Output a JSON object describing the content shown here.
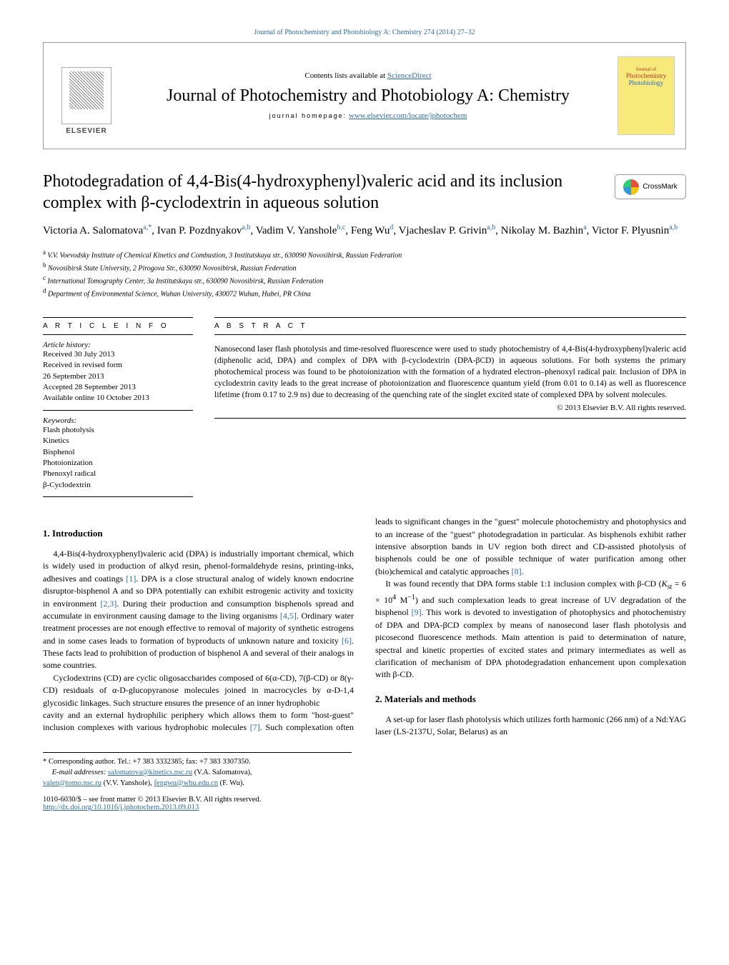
{
  "topLink": "Journal of Photochemistry and Photobiology A: Chemistry 274 (2014) 27–32",
  "header": {
    "contentsPrefix": "Contents lists available at",
    "contentsLink": "ScienceDirect",
    "journalTitle": "Journal of Photochemistry and Photobiology A: Chemistry",
    "homepageLabel": "journal homepage:",
    "homepageUrl": "www.elsevier.com/locate/jphotochem",
    "publisherName": "ELSEVIER",
    "coverLine1": "Journal of",
    "coverLine2": "Photochemistry",
    "coverLine3": "Photobiology"
  },
  "article": {
    "title": "Photodegradation of 4,4-Bis(4-hydroxyphenyl)valeric acid and its inclusion complex with β-cyclodextrin in aqueous solution",
    "crossmarkLabel": "CrossMark"
  },
  "authors": "Victoria A. Salomatova<sup>a,*</sup>, Ivan P. Pozdnyakov<sup>a,b</sup>, Vadim V. Yanshole<sup>b,c</sup>, Feng Wu<sup>d</sup>, Vjacheslav P. Grivin<sup>a,b</sup>, Nikolay M. Bazhin<sup>a</sup>, Victor F. Plyusnin<sup>a,b</sup>",
  "affiliations": [
    "V.V. Voevodsky Institute of Chemical Kinetics and Combustion, 3 Institutskaya str., 630090 Novosibirsk, Russian Federation",
    "Novosibirsk State University, 2 Pirogova Str., 630090 Novosibirsk, Russian Federation",
    "International Tomography Center, 3a Institutskaya str., 630090 Novosibirsk, Russian Federation",
    "Department of Environmental Science, Wuhan University, 430072 Wuhan, Hubei, PR China"
  ],
  "affLabels": [
    "a",
    "b",
    "c",
    "d"
  ],
  "info": {
    "heading": "A R T I C L E    I N F O",
    "historyLabel": "Article history:",
    "history": "Received 30 July 2013\nReceived in revised form\n26 September 2013\nAccepted 28 September 2013\nAvailable online 10 October 2013",
    "keywordsLabel": "Keywords:",
    "keywords": "Flash photolysis\nKinetics\nBisphenol\nPhotoionization\nPhenoxyl radical\nβ-Cyclodextrin"
  },
  "abstract": {
    "heading": "A B S T R A C T",
    "text": "Nanosecond laser flash photolysis and time-resolved fluorescence were used to study photochemistry of 4,4-Bis(4-hydroxyphenyl)valeric acid (diphenolic acid, DPA) and complex of DPA with β-cyclodextrin (DPA-βCD) in aqueous solutions. For both systems the primary photochemical process was found to be photoionization with the formation of a hydrated electron–phenoxyl radical pair. Inclusion of DPA in cyclodextrin cavity leads to the great increase of photoionization and fluorescence quantum yield (from 0.01 to 0.14) as well as fluorescence lifetime (from 0.17 to 2.9 ns) due to decreasing of the quenching rate of the singlet excited state of complexed DPA by solvent molecules.",
    "copyright": "© 2013 Elsevier B.V. All rights reserved."
  },
  "sections": {
    "introHeading": "1.  Introduction",
    "materialsHeading": "2.  Materials and methods"
  },
  "body": {
    "p1a": "4,4-Bis(4-hydroxyphenyl)valeric acid (DPA) is industrially important chemical, which is widely used in production of alkyd resin, phenol-formaldehyde resins, printing-inks, adhesives and coatings ",
    "r1": "[1]",
    "p1b": ". DPA is a close structural analog of widely known endocrine disruptor-bisphenol A and so DPA potentially can exhibit estrogenic activity and toxicity in environment ",
    "r23": "[2,3]",
    "p1c": ". During their production and consumption bisphenols spread and accumulate in environment causing damage to the living organisms ",
    "r45": "[4,5]",
    "p1d": ". Ordinary water treatment processes are not enough effective to removal of majority of synthetic estrogens and in some cases leads to formation of byproducts of unknown nature and toxicity ",
    "r6": "[6]",
    "p1e": ". These facts lead to prohibition of production of bisphenol A and several of their analogs in some countries.",
    "p2": "Cyclodextrins (CD) are cyclic oligosaccharides composed of 6(α-CD), 7(β-CD) or 8(γ-CD) residuals of α-D-glucopyranose molecules joined in macrocycles by α-D-1,4 glycosidic linkages. Such structure ensures the presence of an inner hydrophobic",
    "p3a": "cavity and an external hydrophilic periphery which allows them to form \"host-guest\" inclusion complexes with various hydrophobic molecules ",
    "r7": "[7]",
    "p3b": ". Such complexation often leads to significant changes in the \"guest\" molecule photochemistry and photophysics and to an increase of the \"guest\" photodegradation in particular. As bisphenols exhibit rather intensive absorption bands in UV region both direct and CD-assisted photolysis of bisphenols could be one of possible technique of water purification among other (bio)chemical and catalytic approaches ",
    "r8": "[8]",
    "p3c": ".",
    "p4a": "It was found recently that DPA forms stable 1:1 inclusion complex with β-CD (",
    "kst": "K",
    "kstSub": "st",
    "kstEq": " = 6 × 10",
    "kstSup": "4",
    "kstUnit": " M",
    "kstUnitSup": "−1",
    "p4b": ") and such complexation leads to great increase of UV degradation of the bisphenol ",
    "r9": "[9]",
    "p4c": ". This work is devoted to investigation of photophysics and photochemistry of DPA and DPA-βCD complex by means of nanosecond laser flash photolysis and picosecond fluorescence methods. Main attention is paid to determination of nature, spectral and kinetic properties of excited states and primary intermediates as well as clarification of mechanism of DPA photodegradation enhancement upon complexation with β-CD.",
    "p5": "A set-up for laser flash photolysis which utilizes forth harmonic (266 nm) of a Nd:YAG laser (LS-2137U, Solar, Belarus) as an"
  },
  "footnote": {
    "corrLabel": "* Corresponding author. Tel.: +7 383 3332385; fax: +7 383 3307350.",
    "emailLabel": "E-mail addresses:",
    "email1": "salomatova@kinetics.nsc.ru",
    "email1who": " (V.A. Salomatova),",
    "email2": "valen@tomo.nsc.ru",
    "email2who": " (V.V. Yanshole), ",
    "email3": "fengwu@whu.edu.cn",
    "email3who": " (F. Wu)."
  },
  "bottom": {
    "issn": "1010-6030/$ – see front matter © 2013 Elsevier B.V. All rights reserved.",
    "doi": "http://dx.doi.org/10.1016/j.jphotochem.2013.09.013"
  },
  "colors": {
    "link": "#2e6da4",
    "coverBg": "#f7e97a"
  }
}
